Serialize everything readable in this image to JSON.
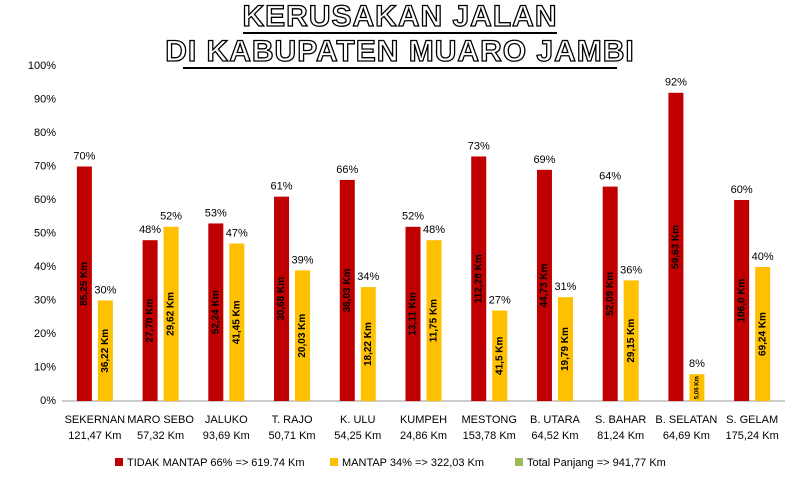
{
  "chart_data": {
    "type": "bar",
    "title": "KERUSAKAN JALAN",
    "subtitle": "DI KABUPATEN MUARO JAMBI",
    "categories": [
      "SEKERNAN",
      "MARO SEBO",
      "JALUKO",
      "T. RAJO",
      "K. ULU",
      "KUMPEH",
      "MESTONG",
      "B. UTARA",
      "S. BAHAR",
      "B. SELATAN",
      "S. GELAM"
    ],
    "category_sublabels": [
      "121,47 Km",
      "57,32 Km",
      "93,69 Km",
      "50,71 Km",
      "54,25 Km",
      "24,86 Km",
      "153,78 Km",
      "64,52 Km",
      "81,24 Km",
      "64,69 Km",
      "175,24 Km"
    ],
    "series": [
      {
        "name": "TIDAK MANTAP 66% => 619.74 Km",
        "color": "#c00000",
        "values": [
          70,
          48,
          53,
          61,
          66,
          52,
          73,
          69,
          64,
          92,
          60
        ],
        "value_labels": [
          "70%",
          "48%",
          "53%",
          "61%",
          "66%",
          "52%",
          "73%",
          "69%",
          "64%",
          "92%",
          "60%"
        ],
        "inner_labels": [
          "85,25 Km",
          "27,70 Km",
          "52,24 Km",
          "30,68 Km",
          "36,03 Km",
          "13,11 Km",
          "112,28 Km",
          "44,73 Km",
          "52,09 Km",
          "59,63 Km",
          "106,0 Km"
        ],
        "inner_color": "#ffc000"
      },
      {
        "name": "MANTAP 34% => 322,03 Km",
        "color": "#ffc000",
        "values": [
          30,
          52,
          47,
          39,
          34,
          48,
          27,
          31,
          36,
          8,
          40
        ],
        "value_labels": [
          "30%",
          "52%",
          "47%",
          "39%",
          "34%",
          "48%",
          "27%",
          "31%",
          "36%",
          "8%",
          "40%"
        ],
        "inner_labels": [
          "36,22 Km",
          "29,62 Km",
          "41,45 Km",
          "20,03 Km",
          "18,22 Km",
          "11,75 Km",
          "41,5 Km",
          "19,79 Km",
          "29,15 Km",
          "5,06 Km",
          "69,24 Km"
        ],
        "inner_color": "#c00000"
      }
    ],
    "legend_extra": {
      "name": "Total Panjang => 941,77 Km",
      "color": "#9bbb59"
    },
    "ylim": [
      0,
      100
    ],
    "yticks": [
      {
        "value": 0,
        "label": "0%"
      },
      {
        "value": 10,
        "label": "10%"
      },
      {
        "value": 20,
        "label": "20%"
      },
      {
        "value": 30,
        "label": "30%"
      },
      {
        "value": 40,
        "label": "40%"
      },
      {
        "value": 50,
        "label": "50%"
      },
      {
        "value": 60,
        "label": "60%"
      },
      {
        "value": 70,
        "label": "70%"
      },
      {
        "value": 80,
        "label": "80%"
      },
      {
        "value": 90,
        "label": "90%"
      },
      {
        "value": 100,
        "label": "100%"
      }
    ],
    "grid": false
  }
}
